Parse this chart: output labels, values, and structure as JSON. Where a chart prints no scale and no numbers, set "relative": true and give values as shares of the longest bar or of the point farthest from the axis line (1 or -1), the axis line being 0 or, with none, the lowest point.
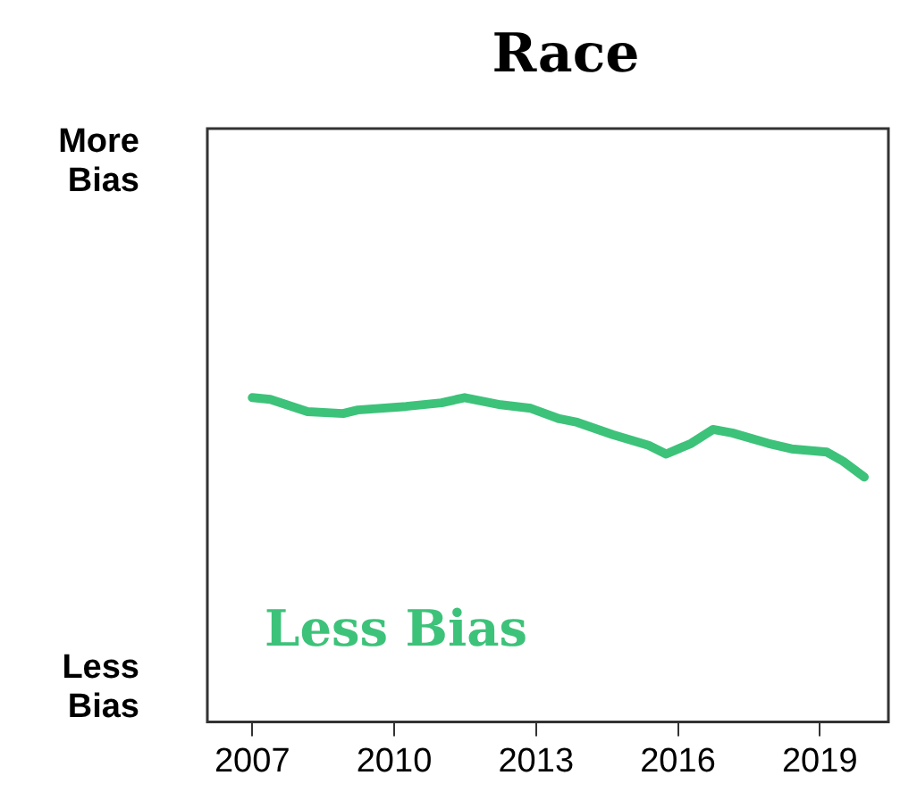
{
  "chart_data": {
    "type": "line",
    "title": "Race",
    "relative": true,
    "x": [
      2007.0,
      2007.38,
      2008.17,
      2008.92,
      2009.23,
      2010.25,
      2011.0,
      2011.49,
      2012.25,
      2012.89,
      2013.49,
      2013.87,
      2014.62,
      2015.38,
      2015.75,
      2016.28,
      2016.74,
      2017.15,
      2017.91,
      2018.4,
      2019.15,
      2019.49,
      2019.94
    ],
    "series": [
      {
        "color": "#3dc27a",
        "values": [
          1.0,
          0.995,
          0.957,
          0.951,
          0.962,
          0.973,
          0.984,
          1.0,
          0.978,
          0.967,
          0.935,
          0.924,
          0.886,
          0.853,
          0.826,
          0.859,
          0.902,
          0.891,
          0.859,
          0.842,
          0.832,
          0.804,
          0.755
        ]
      }
    ],
    "xlim": [
      2006.05,
      2020.45
    ],
    "xticks": [
      2007,
      2010,
      2013,
      2016,
      2019
    ],
    "annotations": [
      "More Bias",
      "Less Bias",
      "Less Bias"
    ],
    "grid": false,
    "legend": false,
    "marker": "none",
    "line_style": "solid"
  }
}
